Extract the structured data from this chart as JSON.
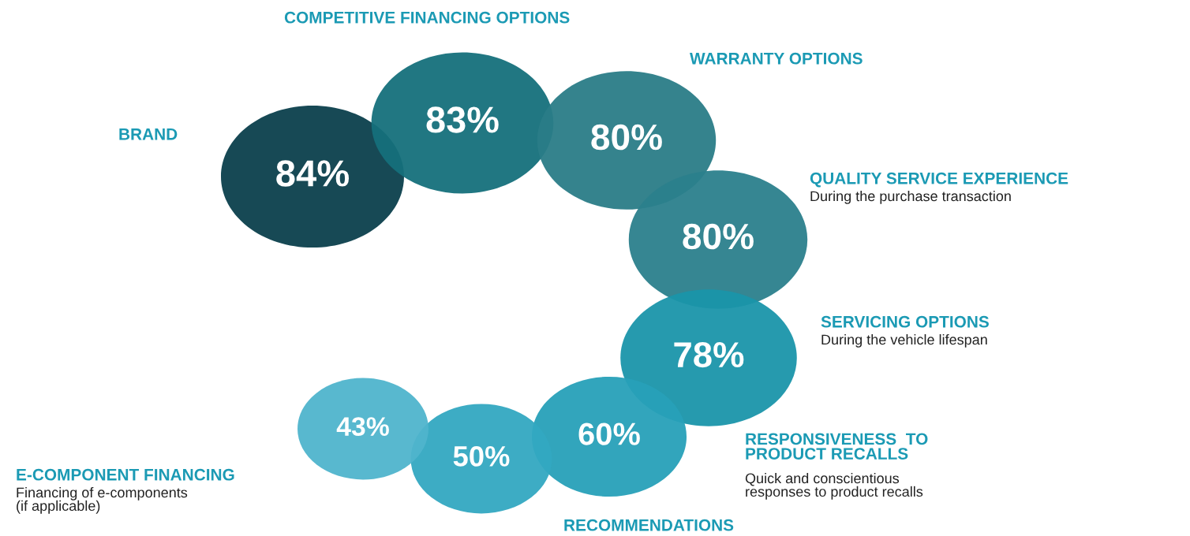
{
  "chart_data": {
    "type": "other",
    "categories": [
      "BRAND",
      "COMPETITIVE FINANCING OPTIONS",
      "WARRANTY OPTIONS",
      "QUALITY SERVICE EXPERIENCE",
      "SERVICING OPTIONS",
      "RESPONSIVENESS  TO\nPRODUCT RECALLS",
      "RECOMMENDATIONS",
      "E-COMPONENT FINANCING"
    ],
    "values": [
      84,
      83,
      80,
      80,
      78,
      60,
      50,
      43
    ],
    "value_labels": [
      "84%",
      "83%",
      "80%",
      "80%",
      "78%",
      "60%",
      "50%",
      "43%"
    ],
    "colors": [
      "#0b3f4c",
      "#15707b",
      "#2a7c87",
      "#2b808c",
      "#1a95aa",
      "#27a0b8",
      "#33a8c1",
      "#4fb4cc"
    ],
    "annotations": [
      "During the purchase transaction",
      "During the vehicle lifespan",
      "Quick and conscientious\nresponses to product recalls",
      "Financing of e-components\n(if applicable)"
    ]
  }
}
